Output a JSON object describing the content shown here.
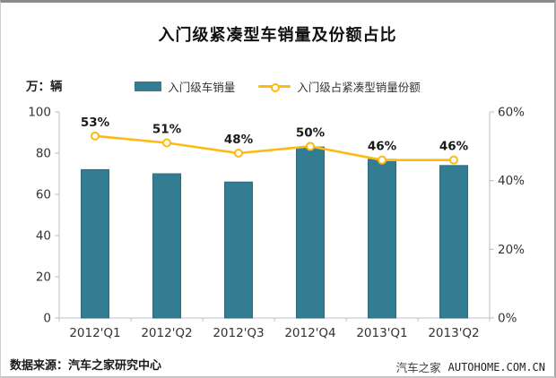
{
  "title": "入门级紧凑型车销量及份额占比",
  "legend": [
    {
      "label": "入门级车销量",
      "type": "bar",
      "color": "#337d92"
    },
    {
      "label": "入门级占紧凑型销量份额",
      "type": "line",
      "color": "#FDBA12"
    }
  ],
  "footer": {
    "source": "数据来源：汽车之家研究中心",
    "watermark_cn": "汽车之家",
    "watermark_en": "AUTOHOME.COM.CN"
  },
  "colors": {
    "bar_fill": "#337d92",
    "bar_border": "#2b6b80",
    "line": "#FDBA12",
    "marker_fill": "#fffef5",
    "axis_line": "#bfbfbf",
    "tick_text": "#333333",
    "data_label_text": "#1a1a1a"
  },
  "chart_data": {
    "type": "bar+line",
    "title": "入门级紧凑型车销量及份额占比",
    "categories": [
      "2012'Q1",
      "2012'Q2",
      "2012'Q3",
      "2012'Q4",
      "2013'Q1",
      "2013'Q2"
    ],
    "series": [
      {
        "name": "入门级车销量",
        "type": "bar",
        "axis": "left",
        "values": [
          72,
          70,
          66,
          83,
          77,
          74
        ]
      },
      {
        "name": "入门级占紧凑型销量份额",
        "type": "line",
        "axis": "right",
        "values": [
          53,
          51,
          48,
          50,
          46,
          46
        ],
        "labels": [
          "53%",
          "51%",
          "48%",
          "50%",
          "46%",
          "46%"
        ]
      }
    ],
    "left_axis": {
      "unit": "万：辆",
      "min": 0,
      "max": 100,
      "ticks": [
        0,
        20,
        40,
        60,
        80,
        100
      ]
    },
    "right_axis": {
      "min": 0,
      "max": 60,
      "ticks": [
        "0%",
        "20%",
        "40%",
        "60%"
      ],
      "tick_values": [
        0,
        20,
        40,
        60
      ]
    },
    "grid": false,
    "legend_position": "top-center"
  }
}
